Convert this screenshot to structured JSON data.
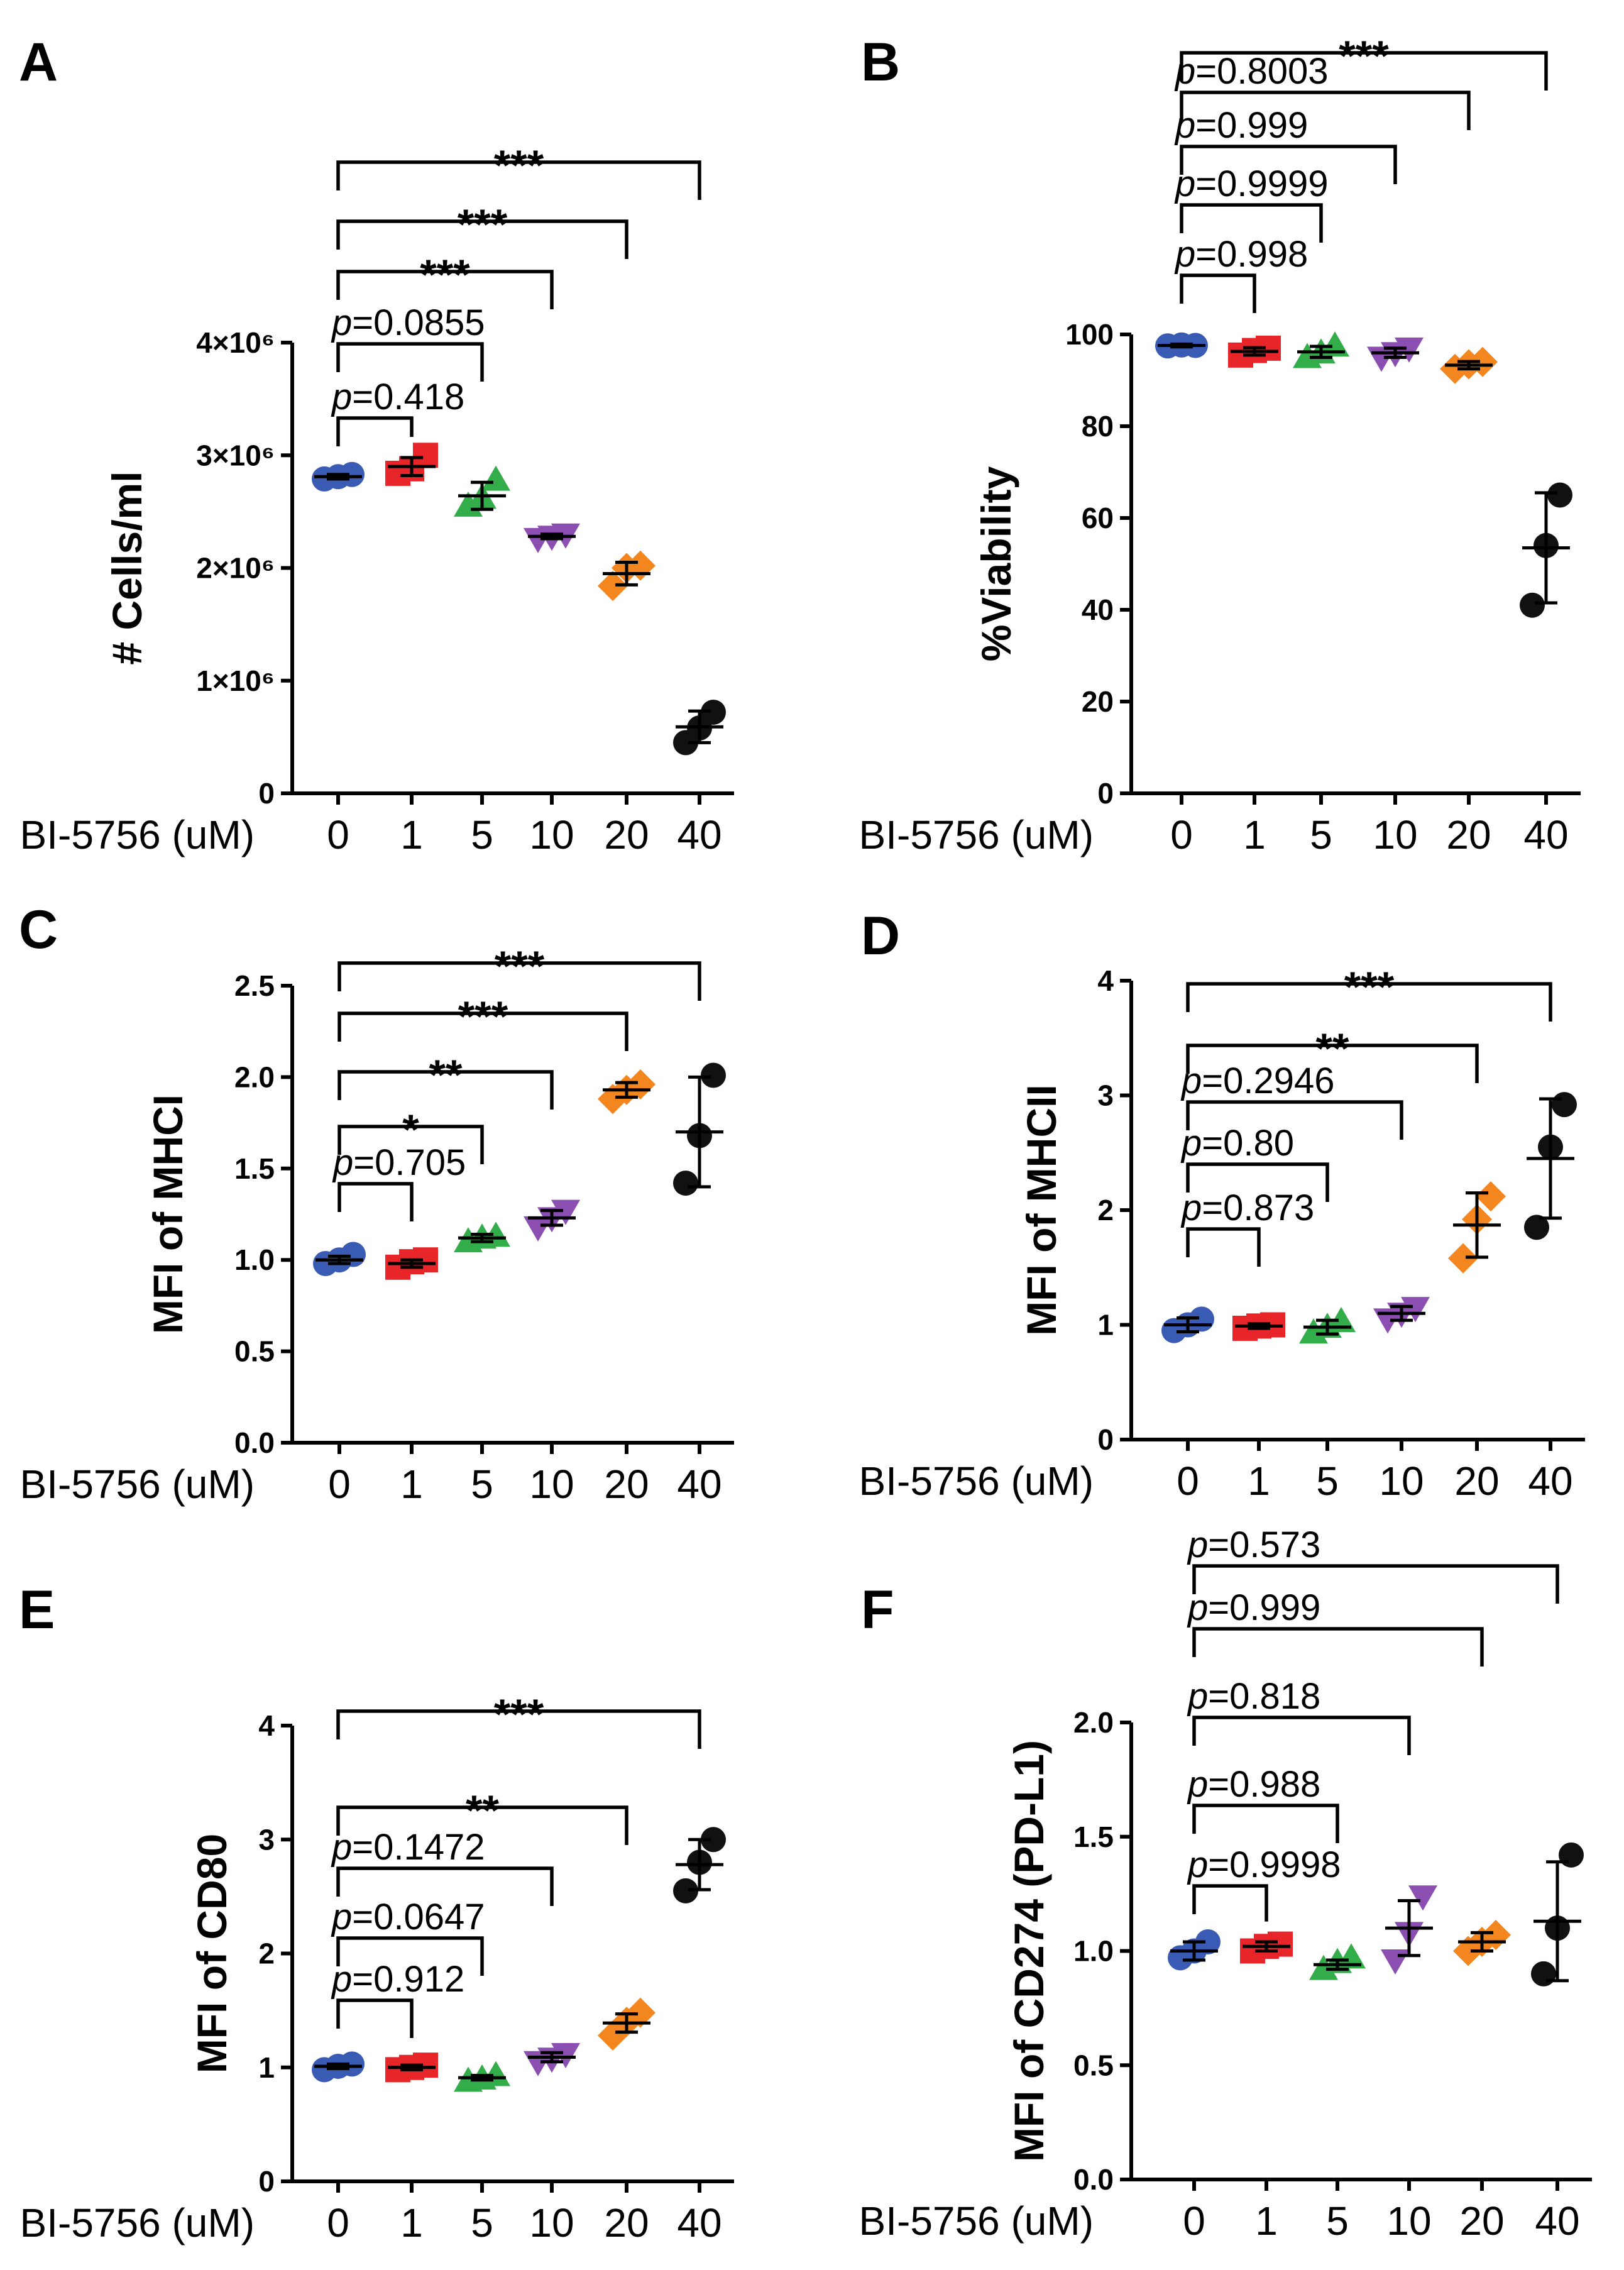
{
  "figure": {
    "colors": {
      "0": "#3a5bb4",
      "1": "#e8262a",
      "5": "#33ad4a",
      "10": "#8a4fb0",
      "20": "#f3861f",
      "40": "#111111"
    },
    "markers": {
      "0": "circle",
      "1": "square",
      "5": "triangle-up",
      "10": "triangle-down",
      "20": "diamond",
      "40": "circle"
    }
  },
  "chart_data": [
    {
      "panel": "A",
      "type": "scatter",
      "xlabel": "BI-5756 (uM)",
      "ylabel": "# Cells/ml",
      "categories": [
        "0",
        "1",
        "5",
        "10",
        "20",
        "40"
      ],
      "ylim": [
        0,
        4000000
      ],
      "yticks": [
        {
          "value": 0,
          "label": "0"
        },
        {
          "value": 1000000,
          "label": "1×10⁶"
        },
        {
          "value": 2000000,
          "label": "2×10⁶"
        },
        {
          "value": 3000000,
          "label": "3×10⁶"
        },
        {
          "value": 4000000,
          "label": "4×10⁶"
        }
      ],
      "points": [
        [
          2790000,
          2810000,
          2830000
        ],
        [
          2840000,
          2880000,
          3000000
        ],
        [
          2550000,
          2620000,
          2780000
        ],
        [
          2260000,
          2280000,
          2300000
        ],
        [
          1840000,
          2000000,
          2020000
        ],
        [
          450000,
          580000,
          720000
        ]
      ],
      "mean": [
        2810000,
        2900000,
        2640000,
        2280000,
        1950000,
        590000
      ],
      "sd": [
        20000,
        80000,
        120000,
        20000,
        100000,
        140000
      ],
      "comparisons": [
        {
          "to": "1",
          "label": "p=0.418"
        },
        {
          "to": "5",
          "label": "p=0.0855"
        },
        {
          "to": "10",
          "label": "***"
        },
        {
          "to": "20",
          "label": "***"
        },
        {
          "to": "40",
          "label": "***"
        }
      ]
    },
    {
      "panel": "B",
      "type": "scatter",
      "xlabel": "BI-5756 (uM)",
      "ylabel": "%Viability",
      "categories": [
        "0",
        "1",
        "5",
        "10",
        "20",
        "40"
      ],
      "ylim": [
        0,
        100
      ],
      "yticks": [
        {
          "value": 0,
          "label": "0"
        },
        {
          "value": 20,
          "label": "20"
        },
        {
          "value": 40,
          "label": "40"
        },
        {
          "value": 60,
          "label": "60"
        },
        {
          "value": 80,
          "label": "80"
        },
        {
          "value": 100,
          "label": "100"
        }
      ],
      "points": [
        [
          97.5,
          97.7,
          97.6
        ],
        [
          95.5,
          96.5,
          97.0
        ],
        [
          95.0,
          96.0,
          97.5
        ],
        [
          95.0,
          96.0,
          97.0
        ],
        [
          92.5,
          93.5,
          94.0
        ],
        [
          41,
          54,
          65
        ]
      ],
      "mean": [
        97.6,
        96.3,
        96.2,
        96.0,
        93.3,
        53.5
      ],
      "sd": [
        0.3,
        0.8,
        1.2,
        1.0,
        0.8,
        12.0
      ],
      "comparisons": [
        {
          "to": "1",
          "label": "p=0.998"
        },
        {
          "to": "5",
          "label": "p=0.9999"
        },
        {
          "to": "10",
          "label": "p=0.999"
        },
        {
          "to": "20",
          "label": "p=0.8003"
        },
        {
          "to": "40",
          "label": "***"
        }
      ]
    },
    {
      "panel": "C",
      "type": "scatter",
      "xlabel": "BI-5756 (uM)",
      "ylabel": "MFI of  MHCI",
      "categories": [
        "0",
        "1",
        "5",
        "10",
        "20",
        "40"
      ],
      "ylim": [
        0,
        2.5
      ],
      "yticks": [
        {
          "value": 0,
          "label": "0.0"
        },
        {
          "value": 0.5,
          "label": "0.5"
        },
        {
          "value": 1.0,
          "label": "1.0"
        },
        {
          "value": 1.5,
          "label": "1.5"
        },
        {
          "value": 2.0,
          "label": "2.0"
        },
        {
          "value": 2.5,
          "label": "2.5"
        }
      ],
      "points": [
        [
          0.98,
          1.0,
          1.03
        ],
        [
          0.96,
          0.99,
          1.0
        ],
        [
          1.1,
          1.12,
          1.13
        ],
        [
          1.18,
          1.23,
          1.27
        ],
        [
          1.88,
          1.93,
          1.96
        ],
        [
          1.42,
          1.68,
          2.01
        ]
      ],
      "mean": [
        1.0,
        0.98,
        1.12,
        1.23,
        1.93,
        1.7
      ],
      "sd": [
        0.02,
        0.02,
        0.02,
        0.04,
        0.04,
        0.3
      ],
      "comparisons": [
        {
          "to": "1",
          "label": "p=0.705"
        },
        {
          "to": "5",
          "label": "*"
        },
        {
          "to": "10",
          "label": "**"
        },
        {
          "to": "20",
          "label": "***"
        },
        {
          "to": "40",
          "label": "***"
        }
      ]
    },
    {
      "panel": "D",
      "type": "scatter",
      "xlabel": "BI-5756 (uM)",
      "ylabel": "MFI of  MHCII",
      "categories": [
        "0",
        "1",
        "5",
        "10",
        "20",
        "40"
      ],
      "ylim": [
        0,
        4
      ],
      "yticks": [
        {
          "value": 0,
          "label": "0"
        },
        {
          "value": 1,
          "label": "1"
        },
        {
          "value": 2,
          "label": "2"
        },
        {
          "value": 3,
          "label": "3"
        },
        {
          "value": 4,
          "label": "4"
        }
      ],
      "points": [
        [
          0.95,
          1.0,
          1.05
        ],
        [
          0.97,
          0.99,
          1.0
        ],
        [
          0.93,
          0.98,
          1.03
        ],
        [
          1.05,
          1.1,
          1.15
        ],
        [
          1.58,
          1.92,
          2.12
        ],
        [
          1.85,
          2.55,
          2.92
        ]
      ],
      "mean": [
        1.0,
        0.99,
        0.98,
        1.1,
        1.87,
        2.45
      ],
      "sd": [
        0.06,
        0.02,
        0.06,
        0.06,
        0.28,
        0.52
      ],
      "comparisons": [
        {
          "to": "1",
          "label": "p=0.873"
        },
        {
          "to": "5",
          "label": "p=0.80"
        },
        {
          "to": "10",
          "label": "p=0.2946"
        },
        {
          "to": "20",
          "label": "**"
        },
        {
          "to": "40",
          "label": "***"
        }
      ]
    },
    {
      "panel": "E",
      "type": "scatter",
      "xlabel": "BI-5756 (uM)",
      "ylabel": "MFI of CD80",
      "categories": [
        "0",
        "1",
        "5",
        "10",
        "20",
        "40"
      ],
      "ylim": [
        0,
        4
      ],
      "yticks": [
        {
          "value": 0,
          "label": "0"
        },
        {
          "value": 1,
          "label": "1"
        },
        {
          "value": 2,
          "label": "2"
        },
        {
          "value": 3,
          "label": "3"
        },
        {
          "value": 4,
          "label": "4"
        }
      ],
      "points": [
        [
          0.98,
          1.01,
          1.03
        ],
        [
          0.98,
          1.0,
          1.02
        ],
        [
          0.88,
          0.9,
          0.93
        ],
        [
          1.05,
          1.08,
          1.12
        ],
        [
          1.28,
          1.4,
          1.48
        ],
        [
          2.55,
          2.8,
          3.0
        ]
      ],
      "mean": [
        1.01,
        1.0,
        0.91,
        1.09,
        1.39,
        2.78
      ],
      "sd": [
        0.02,
        0.02,
        0.02,
        0.04,
        0.08,
        0.22
      ],
      "comparisons": [
        {
          "to": "1",
          "label": "p=0.912"
        },
        {
          "to": "5",
          "label": "p=0.0647"
        },
        {
          "to": "10",
          "label": "p=0.1472"
        },
        {
          "to": "20",
          "label": "**"
        },
        {
          "to": "40",
          "label": "***"
        }
      ]
    },
    {
      "panel": "F",
      "type": "scatter",
      "xlabel": "BI-5756 (uM)",
      "ylabel": "MFI of  CD274 (PD-L1)",
      "categories": [
        "0",
        "1",
        "5",
        "10",
        "20",
        "40"
      ],
      "ylim": [
        0,
        2.0
      ],
      "yticks": [
        {
          "value": 0,
          "label": "0.0"
        },
        {
          "value": 0.5,
          "label": "0.5"
        },
        {
          "value": 1.0,
          "label": "1.0"
        },
        {
          "value": 1.5,
          "label": "1.5"
        },
        {
          "value": 2.0,
          "label": "2.0"
        }
      ],
      "points": [
        [
          0.97,
          1.0,
          1.04
        ],
        [
          1.0,
          1.02,
          1.03
        ],
        [
          0.92,
          0.95,
          0.97
        ],
        [
          0.96,
          1.08,
          1.24
        ],
        [
          1.0,
          1.04,
          1.07
        ],
        [
          0.9,
          1.1,
          1.42
        ]
      ],
      "mean": [
        1.0,
        1.02,
        0.94,
        1.1,
        1.04,
        1.13
      ],
      "sd": [
        0.04,
        0.02,
        0.02,
        0.12,
        0.04,
        0.26
      ],
      "comparisons": [
        {
          "to": "1",
          "label": "p=0.9998"
        },
        {
          "to": "5",
          "label": "p=0.988"
        },
        {
          "to": "10",
          "label": "p=0.818"
        },
        {
          "to": "20",
          "label": "p=0.999"
        },
        {
          "to": "40",
          "label": "p=0.573"
        }
      ]
    }
  ]
}
